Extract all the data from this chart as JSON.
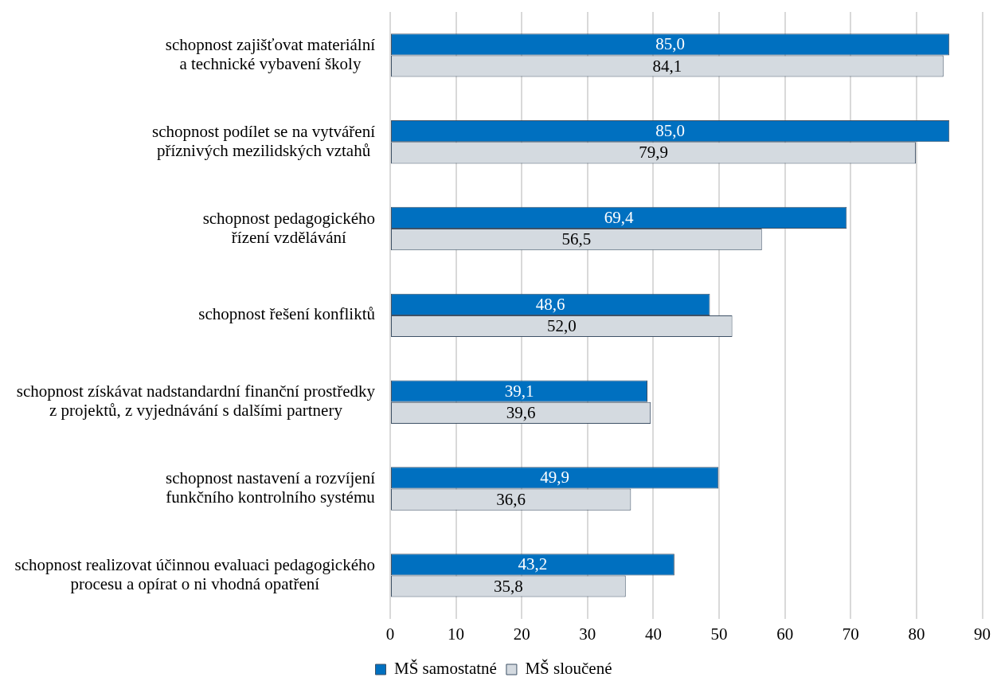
{
  "chart_data": {
    "type": "bar",
    "orientation": "horizontal",
    "categories": [
      "schopnost zajišťovat materiální\na technické vybavení školy",
      "schopnost podílet se na vytváření\npříznivých mezilidských vztahů",
      "schopnost pedagogického\nřízení vzdělávání",
      "schopnost řešení konfliktů",
      "schopnost získávat nadstandardní finanční prostředky\nz projektů, z vyjednávání s dalšími partnery",
      "schopnost nastavení a rozvíjení\nfunkčního kontrolního systému",
      "schopnost realizovat účinnou evaluaci pedagogického\nprocesu a opírat o ni vhodná opatření"
    ],
    "series": [
      {
        "name": "MŠ samostatné",
        "color": "#0070c0",
        "values": [
          85.0,
          85.0,
          69.4,
          48.6,
          39.1,
          49.9,
          43.2
        ],
        "value_labels": [
          "85,0",
          "85,0",
          "69,4",
          "48,6",
          "39,1",
          "49,9",
          "43,2"
        ]
      },
      {
        "name": "MŠ sloučené",
        "color": "#d4dae0",
        "values": [
          84.1,
          79.9,
          56.5,
          52.0,
          39.6,
          36.6,
          35.8
        ],
        "value_labels": [
          "84,1",
          "79,9",
          "56,5",
          "52,0",
          "39,6",
          "36,6",
          "35,8"
        ]
      }
    ],
    "xlim": [
      0,
      90
    ],
    "xticks": [
      0,
      10,
      20,
      30,
      40,
      50,
      60,
      70,
      80,
      90
    ],
    "grid": "x",
    "legend": "bottom"
  }
}
